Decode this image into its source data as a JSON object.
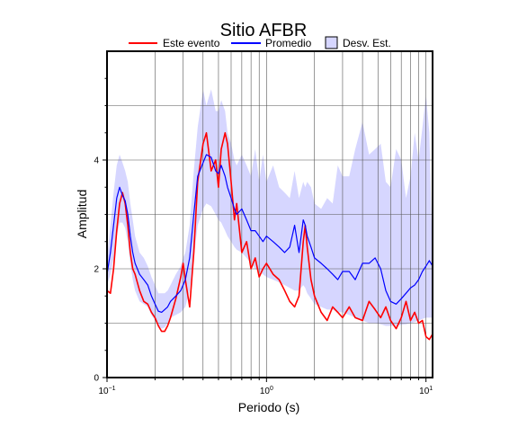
{
  "chart_data": {
    "type": "line",
    "title": "Sitio AFBR",
    "xlabel": "Periodo (s)",
    "ylabel": "Amplitud",
    "x_scale": "log",
    "xlim": [
      0.1,
      11
    ],
    "ylim": [
      0,
      6
    ],
    "y_ticks": [
      0,
      2,
      4
    ],
    "y_tick_labels": [
      "0",
      "2",
      "4"
    ],
    "x_ticks": [
      0.1,
      1,
      10
    ],
    "x_tick_labels": [
      "10",
      "10",
      "10"
    ],
    "x_tick_exponents": [
      "−1",
      "0",
      "1"
    ],
    "grid": true,
    "legend_position": "top",
    "legend": [
      {
        "label": "Este evento",
        "kind": "line",
        "color": "#ff0000"
      },
      {
        "label": "Promedio",
        "kind": "line",
        "color": "#0000ff"
      },
      {
        "label": "Desv. Est.",
        "kind": "band",
        "color": "#d6d6ff"
      }
    ],
    "series": [
      {
        "name": "Este evento",
        "color": "#ff0000",
        "x": [
          0.1,
          0.105,
          0.11,
          0.115,
          0.12,
          0.125,
          0.13,
          0.135,
          0.14,
          0.145,
          0.15,
          0.16,
          0.17,
          0.18,
          0.19,
          0.2,
          0.21,
          0.22,
          0.23,
          0.24,
          0.25,
          0.27,
          0.29,
          0.3,
          0.31,
          0.33,
          0.35,
          0.37,
          0.4,
          0.42,
          0.45,
          0.48,
          0.5,
          0.52,
          0.55,
          0.57,
          0.6,
          0.63,
          0.65,
          0.7,
          0.75,
          0.8,
          0.85,
          0.9,
          0.95,
          1.0,
          1.1,
          1.2,
          1.3,
          1.4,
          1.5,
          1.6,
          1.7,
          1.75,
          1.8,
          1.9,
          2.0,
          2.2,
          2.4,
          2.6,
          2.8,
          3.0,
          3.3,
          3.6,
          4.0,
          4.4,
          4.8,
          5.2,
          5.6,
          6.0,
          6.5,
          7.0,
          7.5,
          8.0,
          8.5,
          9.0,
          9.5,
          10.0,
          10.5,
          11.0
        ],
        "values": [
          1.6,
          1.55,
          2.0,
          2.7,
          3.2,
          3.4,
          3.2,
          2.8,
          2.3,
          2.0,
          1.9,
          1.6,
          1.4,
          1.35,
          1.2,
          1.1,
          0.95,
          0.85,
          0.85,
          0.95,
          1.1,
          1.45,
          1.85,
          2.1,
          1.8,
          1.3,
          2.3,
          3.6,
          4.3,
          4.5,
          3.8,
          4.0,
          3.5,
          4.2,
          4.5,
          4.3,
          3.6,
          2.9,
          3.2,
          2.3,
          2.5,
          2.0,
          2.2,
          1.85,
          2.0,
          2.1,
          1.9,
          1.8,
          1.6,
          1.4,
          1.3,
          1.5,
          2.5,
          2.8,
          2.4,
          1.8,
          1.5,
          1.2,
          1.05,
          1.3,
          1.2,
          1.1,
          1.3,
          1.1,
          1.05,
          1.4,
          1.25,
          1.1,
          1.3,
          1.05,
          0.9,
          1.1,
          1.4,
          1.05,
          1.2,
          1.0,
          1.05,
          0.75,
          0.7,
          0.8
        ]
      },
      {
        "name": "Promedio",
        "color": "#0000ff",
        "x": [
          0.1,
          0.105,
          0.11,
          0.115,
          0.12,
          0.125,
          0.13,
          0.135,
          0.14,
          0.145,
          0.15,
          0.16,
          0.17,
          0.18,
          0.19,
          0.2,
          0.21,
          0.22,
          0.23,
          0.24,
          0.25,
          0.27,
          0.29,
          0.3,
          0.31,
          0.33,
          0.35,
          0.37,
          0.4,
          0.42,
          0.45,
          0.48,
          0.5,
          0.52,
          0.55,
          0.57,
          0.6,
          0.63,
          0.65,
          0.7,
          0.75,
          0.8,
          0.85,
          0.9,
          0.95,
          1.0,
          1.1,
          1.2,
          1.3,
          1.4,
          1.5,
          1.6,
          1.7,
          1.75,
          1.8,
          1.9,
          2.0,
          2.2,
          2.4,
          2.6,
          2.8,
          3.0,
          3.3,
          3.6,
          4.0,
          4.4,
          4.8,
          5.2,
          5.6,
          6.0,
          6.5,
          7.0,
          7.5,
          8.0,
          8.5,
          9.0,
          9.5,
          10.0,
          10.5,
          11.0
        ],
        "values": [
          1.9,
          2.3,
          2.8,
          3.3,
          3.5,
          3.35,
          3.25,
          3.0,
          2.6,
          2.3,
          2.1,
          1.9,
          1.8,
          1.7,
          1.5,
          1.35,
          1.22,
          1.2,
          1.25,
          1.3,
          1.4,
          1.5,
          1.6,
          1.7,
          1.8,
          2.2,
          3.0,
          3.7,
          3.95,
          4.1,
          4.05,
          3.8,
          3.75,
          3.9,
          3.7,
          3.5,
          3.3,
          3.1,
          3.0,
          3.1,
          2.9,
          2.7,
          2.7,
          2.6,
          2.5,
          2.6,
          2.5,
          2.4,
          2.3,
          2.4,
          2.8,
          2.3,
          2.9,
          2.8,
          2.6,
          2.4,
          2.2,
          2.1,
          2.0,
          1.9,
          1.8,
          1.95,
          1.95,
          1.8,
          2.1,
          2.1,
          2.2,
          2.0,
          1.6,
          1.4,
          1.35,
          1.45,
          1.55,
          1.65,
          1.7,
          1.8,
          1.95,
          2.05,
          2.15,
          2.05
        ]
      }
    ],
    "band": {
      "name": "Desv. Est.",
      "color": "#d6d6ff",
      "x": [
        0.1,
        0.105,
        0.11,
        0.115,
        0.12,
        0.125,
        0.13,
        0.135,
        0.14,
        0.145,
        0.15,
        0.16,
        0.17,
        0.18,
        0.19,
        0.2,
        0.21,
        0.22,
        0.23,
        0.24,
        0.25,
        0.27,
        0.29,
        0.3,
        0.31,
        0.33,
        0.35,
        0.37,
        0.4,
        0.42,
        0.45,
        0.48,
        0.5,
        0.52,
        0.55,
        0.57,
        0.6,
        0.63,
        0.65,
        0.7,
        0.75,
        0.8,
        0.85,
        0.9,
        0.95,
        1.0,
        1.1,
        1.2,
        1.3,
        1.4,
        1.5,
        1.6,
        1.7,
        1.75,
        1.8,
        1.9,
        2.0,
        2.2,
        2.4,
        2.6,
        2.8,
        3.0,
        3.3,
        3.6,
        4.0,
        4.4,
        4.8,
        5.2,
        5.6,
        6.0,
        6.5,
        7.0,
        7.5,
        8.0,
        8.5,
        9.0,
        9.5,
        10.0,
        10.5,
        11.0
      ],
      "upper": [
        2.2,
        2.8,
        3.4,
        3.9,
        4.1,
        3.95,
        3.8,
        3.6,
        3.2,
        2.9,
        2.6,
        2.3,
        2.2,
        2.05,
        1.85,
        1.7,
        1.55,
        1.55,
        1.55,
        1.6,
        1.7,
        1.9,
        2.05,
        2.2,
        2.3,
        2.8,
        3.8,
        4.6,
        5.3,
        5.0,
        5.3,
        4.9,
        4.9,
        5.1,
        4.9,
        4.5,
        4.3,
        4.0,
        3.9,
        4.1,
        3.9,
        3.7,
        4.2,
        3.6,
        4.1,
        3.6,
        3.9,
        3.5,
        3.4,
        3.3,
        3.8,
        3.3,
        3.6,
        3.5,
        3.6,
        3.5,
        3.2,
        3.1,
        3.3,
        3.2,
        3.9,
        3.7,
        3.7,
        4.2,
        4.7,
        4.1,
        4.2,
        4.3,
        3.6,
        3.5,
        4.2,
        4.0,
        3.3,
        3.7,
        4.5,
        4.0,
        4.6,
        5.2,
        4.5,
        2.1
      ],
      "lower": [
        1.7,
        1.9,
        2.2,
        2.6,
        2.85,
        2.85,
        2.75,
        2.5,
        2.1,
        1.8,
        1.6,
        1.4,
        1.35,
        1.3,
        1.15,
        1.05,
        0.95,
        0.9,
        0.92,
        1.0,
        1.1,
        1.15,
        1.2,
        1.25,
        1.3,
        1.6,
        2.2,
        2.8,
        3.1,
        3.2,
        3.15,
        3.0,
        2.9,
        2.85,
        2.7,
        2.6,
        2.5,
        2.4,
        2.35,
        2.3,
        2.2,
        2.1,
        2.0,
        1.95,
        1.9,
        1.85,
        1.8,
        1.75,
        1.7,
        1.65,
        1.6,
        1.6,
        1.7,
        1.65,
        1.55,
        1.45,
        1.35,
        1.3,
        1.25,
        1.25,
        1.2,
        1.2,
        1.15,
        1.1,
        1.05,
        1.0,
        1.0,
        0.98,
        0.95,
        0.95,
        0.95,
        0.97,
        0.98,
        1.0,
        1.02,
        1.05,
        1.08,
        1.1,
        1.1,
        1.1
      ]
    }
  }
}
